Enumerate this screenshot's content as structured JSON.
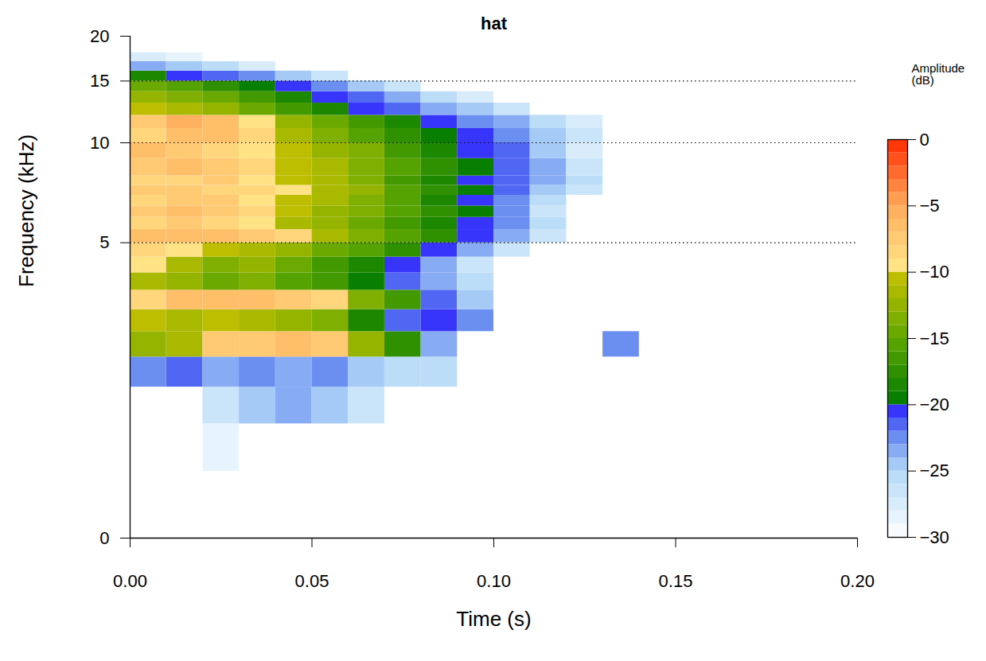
{
  "chart_data": {
    "type": "spectrogram",
    "title": "hat",
    "x_label": "Time (s)",
    "y_label": "Frequency (kHz)",
    "xlim": [
      0,
      0.2
    ],
    "xticks": [
      0,
      0.05,
      0.1,
      0.15,
      0.2
    ],
    "ylim": [
      0,
      20
    ],
    "yticks": [
      0,
      5,
      10,
      15,
      20
    ],
    "grid": true,
    "x_bins": [
      0,
      0.01,
      0.02,
      0.03,
      0.04,
      0.05,
      0.06,
      0.07,
      0.08,
      0.09,
      0.1,
      0.11,
      0.12,
      0.13,
      0.14
    ],
    "y_bins": [
      0,
      0.5,
      1,
      1.5,
      2,
      2.5,
      3,
      3.5,
      4,
      4.5,
      5,
      5.5,
      6,
      6.5,
      7,
      7.5,
      8,
      9,
      10,
      11,
      12,
      13,
      14,
      15,
      16,
      17,
      18
    ],
    "values": [
      [
        null,
        null,
        null,
        null,
        null,
        null,
        null,
        null,
        null,
        null,
        null,
        null,
        null,
        null
      ],
      [
        null,
        null,
        -29,
        null,
        null,
        null,
        null,
        null,
        null,
        null,
        null,
        null,
        null,
        null
      ],
      [
        null,
        null,
        -27,
        -25,
        -24,
        -25,
        -27,
        null,
        null,
        null,
        null,
        null,
        null,
        null
      ],
      [
        -23,
        -22,
        -24,
        -23,
        -24,
        -23,
        -25,
        -26,
        -26,
        null,
        null,
        null,
        null,
        null
      ],
      [
        -13,
        -12,
        -8,
        -8,
        -7,
        -8,
        -13,
        -18,
        -24,
        null,
        null,
        null,
        null,
        -23
      ],
      [
        -11,
        -12,
        -11,
        -12,
        -13,
        -14,
        -19,
        -22,
        -21,
        -23,
        null,
        null,
        null,
        null
      ],
      [
        -9,
        -7,
        -7,
        -7,
        -8,
        -9,
        -14,
        -17,
        -22,
        -25,
        null,
        null,
        null,
        null
      ],
      [
        -12,
        -13,
        -15,
        -14,
        -16,
        -17,
        -20,
        -22,
        -24,
        -26,
        null,
        null,
        null,
        null
      ],
      [
        -10,
        -12,
        -14,
        -13,
        -15,
        -17,
        -19,
        -21,
        -24,
        -27,
        null,
        null,
        null,
        null
      ],
      [
        -9,
        -10,
        -11,
        -12,
        -13,
        -15,
        -16,
        -18,
        -21,
        -24,
        -27,
        null,
        null,
        null
      ],
      [
        -7,
        -7,
        -7,
        -8,
        -9,
        -12,
        -14,
        -16,
        -18,
        -21,
        -24,
        -27,
        null,
        null
      ],
      [
        -9,
        -8,
        -9,
        -10,
        -12,
        -13,
        -15,
        -17,
        -19,
        -21,
        -23,
        -26,
        null,
        null
      ],
      [
        -8,
        -7,
        -8,
        -9,
        -11,
        -13,
        -14,
        -16,
        -18,
        -20,
        -23,
        -27,
        null,
        null
      ],
      [
        -9,
        -8,
        -8,
        -10,
        -11,
        -12,
        -14,
        -16,
        -19,
        -21,
        -23,
        -26,
        null,
        null
      ],
      [
        -8,
        -8,
        -9,
        -9,
        -10,
        -12,
        -13,
        -16,
        -18,
        -20,
        -22,
        -25,
        -27,
        null
      ],
      [
        -9,
        -9,
        -8,
        -10,
        -11,
        -12,
        -14,
        -17,
        -19,
        -21,
        -22,
        -24,
        -26,
        null
      ],
      [
        -8,
        -7,
        -8,
        -9,
        -11,
        -12,
        -14,
        -16,
        -18,
        -20,
        -22,
        -24,
        -27,
        null
      ],
      [
        -7,
        -8,
        -9,
        -10,
        -11,
        -13,
        -14,
        -17,
        -19,
        -21,
        -22,
        -25,
        -28,
        null
      ],
      [
        -9,
        -7,
        -7,
        -9,
        -12,
        -14,
        -16,
        -18,
        -20,
        -21,
        -23,
        -25,
        -27,
        null
      ],
      [
        -8,
        -6,
        -7,
        -10,
        -13,
        -15,
        -17,
        -19,
        -21,
        -23,
        -24,
        -26,
        -28,
        null
      ],
      [
        -11,
        -12,
        -13,
        -15,
        -17,
        -19,
        -21,
        -22,
        -24,
        -25,
        -27,
        null,
        null,
        null
      ],
      [
        -13,
        -14,
        -15,
        -17,
        -19,
        -21,
        -22,
        -24,
        -26,
        -28,
        null,
        null,
        null,
        null
      ],
      [
        -15,
        -16,
        -18,
        -20,
        -21,
        -23,
        -25,
        -27,
        null,
        null,
        null,
        null,
        null,
        null
      ],
      [
        -19,
        -21,
        -22,
        -23,
        -25,
        -27,
        null,
        null,
        null,
        null,
        null,
        null,
        null,
        null
      ],
      [
        -24,
        -25,
        -26,
        -28,
        null,
        null,
        null,
        null,
        null,
        null,
        null,
        null,
        null,
        null
      ],
      [
        -28,
        -29,
        null,
        null,
        null,
        null,
        null,
        null,
        null,
        null,
        null,
        null,
        null,
        null
      ]
    ],
    "colorbar": {
      "label": "Amplitude (dB)",
      "lim": [
        -30,
        0
      ],
      "ticks": [
        {
          "value": -30,
          "label": "−30"
        },
        {
          "value": -25,
          "label": "−25"
        },
        {
          "value": -20,
          "label": "−20"
        },
        {
          "value": -15,
          "label": "−15"
        },
        {
          "value": -10,
          "label": "−10"
        },
        {
          "value": -5,
          "label": "−5"
        },
        {
          "value": 0,
          "label": "0"
        }
      ]
    }
  }
}
